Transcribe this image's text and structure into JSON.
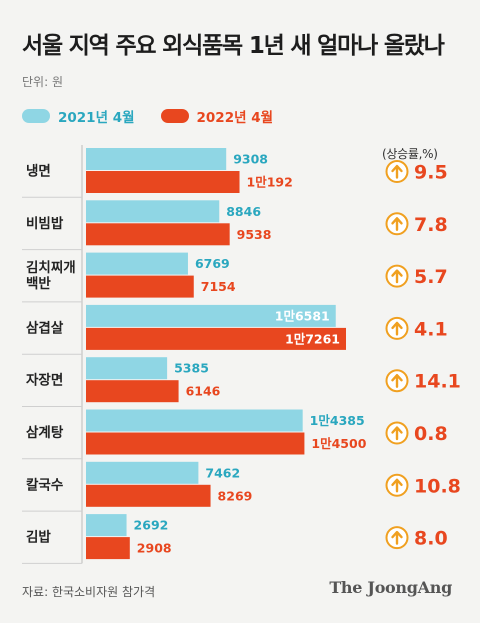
{
  "chart_data": {
    "type": "bar",
    "orientation": "horizontal",
    "title": "서울 지역 주요 외식품목 1년 새 얼마나 올랐나",
    "unit": "단위: 원",
    "categories": [
      [
        "냉면"
      ],
      [
        "비빔밥"
      ],
      [
        "김치찌개",
        "백반"
      ],
      [
        "삼겹살"
      ],
      [
        "자장면"
      ],
      [
        "삼계탕"
      ],
      [
        "칼국수"
      ],
      [
        "김밥"
      ]
    ],
    "series": [
      {
        "name": "2021년 4월",
        "color": "#8fd6e4",
        "label_color": "#2aa7bf",
        "values": [
          9308,
          8846,
          6769,
          16581,
          5385,
          14385,
          7462,
          2692
        ],
        "labels": [
          "9308",
          "8846",
          "6769",
          "1만6581",
          "5385",
          "1만4385",
          "7462",
          "2692"
        ]
      },
      {
        "name": "2022년 4월",
        "color": "#e8471f",
        "label_color": "#e8471f",
        "values": [
          10192,
          9538,
          7154,
          17261,
          6146,
          14500,
          8269,
          2908
        ],
        "labels": [
          "1만192",
          "9538",
          "7154",
          "1만7261",
          "6146",
          "1만4500",
          "8269",
          "2908"
        ]
      }
    ],
    "rate_header": "(상승률,%)",
    "rates": [
      "9.5",
      "7.8",
      "5.7",
      "4.1",
      "14.1",
      "0.8",
      "10.8",
      "8.0"
    ],
    "xlim": [
      0,
      17261
    ],
    "grid": false,
    "legend_position": "top-left"
  },
  "source": "자료: 한국소비자원 참가격",
  "publisher": "The JoongAng",
  "icons": {
    "rate_marker": "up-arrow-circle-icon"
  }
}
